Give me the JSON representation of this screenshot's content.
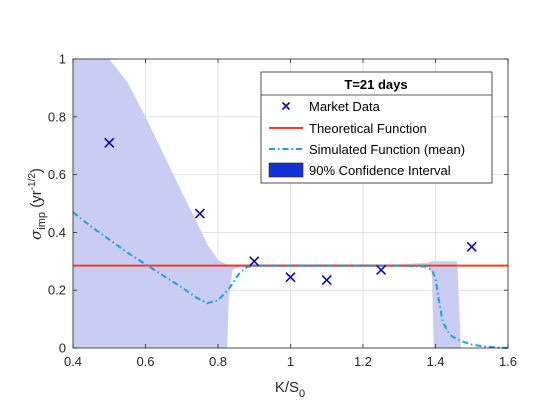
{
  "chart_data": {
    "type": "line",
    "title": "",
    "xlabel_main": "K/S",
    "xlabel_sub": "0",
    "ylabel_sigma": "σ",
    "ylabel_sub": "imp",
    "ylabel_paren_open": " (yr",
    "ylabel_sup": "-1/2",
    "ylabel_paren_close": ")",
    "xlim": [
      0.4,
      1.6
    ],
    "ylim": [
      0,
      1
    ],
    "xticks": [
      0.4,
      0.6,
      0.8,
      1.0,
      1.2,
      1.4,
      1.6
    ],
    "xtick_labels": [
      "0.4",
      "0.6",
      "0.8",
      "1",
      "1.2",
      "1.4",
      "1.6"
    ],
    "yticks": [
      0,
      0.2,
      0.4,
      0.6,
      0.8,
      1.0
    ],
    "ytick_labels": [
      "0",
      "0.2",
      "0.4",
      "0.6",
      "0.8",
      "1"
    ],
    "grid": true,
    "legend": {
      "placement": "top-right",
      "title": "T=21 days",
      "entries": [
        "Market Data",
        "Theoretical Function",
        "Simulated Function (mean)",
        "90% Confidence Interval"
      ]
    },
    "colors": {
      "market": "#0a0aa8",
      "theoretical": "#ff3b1f",
      "simulated": "#1aa3d8",
      "confidence_fill": "#c9cdf3",
      "confidence_legend": "#1530d6"
    },
    "series": [
      {
        "name": "Market Data",
        "style": "markers-x",
        "x": [
          0.5,
          0.75,
          0.9,
          1.0,
          1.1,
          1.25,
          1.5
        ],
        "y": [
          0.71,
          0.465,
          0.3,
          0.245,
          0.235,
          0.27,
          0.35
        ]
      },
      {
        "name": "Theoretical Function",
        "style": "solid",
        "x": [
          0.4,
          1.6
        ],
        "y": [
          0.285,
          0.285
        ]
      },
      {
        "name": "Simulated Function (mean)",
        "style": "dashdot",
        "x": [
          0.4,
          0.45,
          0.5,
          0.55,
          0.6,
          0.65,
          0.7,
          0.74,
          0.77,
          0.8,
          0.83,
          0.86,
          0.88,
          0.9,
          1.0,
          1.1,
          1.2,
          1.3,
          1.37,
          1.39,
          1.4,
          1.41,
          1.42,
          1.44,
          1.46,
          1.48,
          1.5,
          1.53,
          1.56,
          1.58,
          1.6
        ],
        "y": [
          0.47,
          0.42,
          0.375,
          0.33,
          0.29,
          0.25,
          0.21,
          0.175,
          0.155,
          0.165,
          0.205,
          0.26,
          0.28,
          0.285,
          0.285,
          0.285,
          0.285,
          0.285,
          0.282,
          0.27,
          0.24,
          0.16,
          0.09,
          0.045,
          0.03,
          0.02,
          0.012,
          0.006,
          0.003,
          0.001,
          0.0
        ]
      },
      {
        "name": "90% Confidence Interval",
        "style": "band",
        "x": [
          0.4,
          0.45,
          0.5,
          0.55,
          0.6,
          0.65,
          0.7,
          0.74,
          0.77,
          0.8,
          0.815,
          0.825,
          0.83,
          0.84,
          0.86,
          0.88,
          0.9,
          1.0,
          1.1,
          1.2,
          1.3,
          1.38,
          1.39,
          1.395,
          1.4,
          1.42,
          1.44,
          1.46,
          1.47,
          1.6
        ],
        "upper": [
          1.0,
          1.0,
          1.0,
          0.92,
          0.8,
          0.67,
          0.54,
          0.44,
          0.36,
          0.305,
          0.295,
          0.29,
          0.29,
          0.29,
          0.29,
          0.29,
          0.29,
          0.29,
          0.29,
          0.29,
          0.29,
          0.295,
          0.3,
          0.3,
          0.3,
          0.3,
          0.3,
          0.3,
          0.0,
          0.0
        ],
        "lower": [
          0.0,
          0.0,
          0.0,
          0.0,
          0.0,
          0.0,
          0.0,
          0.0,
          0.0,
          0.0,
          0.0,
          0.0,
          0.18,
          0.27,
          0.28,
          0.28,
          0.28,
          0.28,
          0.28,
          0.28,
          0.28,
          0.28,
          0.26,
          0.0,
          0.0,
          0.0,
          0.0,
          0.0,
          0.0,
          0.0
        ]
      }
    ]
  }
}
